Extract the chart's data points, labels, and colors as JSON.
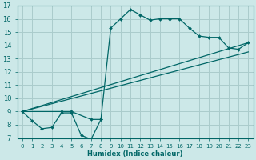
{
  "xlabel": "Humidex (Indice chaleur)",
  "xlim": [
    -0.5,
    23.5
  ],
  "ylim": [
    7,
    17
  ],
  "xticks": [
    0,
    1,
    2,
    3,
    4,
    5,
    6,
    7,
    8,
    9,
    10,
    11,
    12,
    13,
    14,
    15,
    16,
    17,
    18,
    19,
    20,
    21,
    22,
    23
  ],
  "yticks": [
    7,
    8,
    9,
    10,
    11,
    12,
    13,
    14,
    15,
    16,
    17
  ],
  "bg_color": "#cce8e8",
  "grid_color": "#aacccc",
  "line_color": "#006666",
  "series": [
    {
      "x": [
        0,
        1,
        2,
        3,
        4,
        5,
        6,
        7,
        8
      ],
      "y": [
        9,
        8.3,
        7.7,
        7.8,
        8.9,
        8.9,
        7.2,
        6.9,
        8.4
      ],
      "markers": true
    },
    {
      "x": [
        0,
        4,
        5,
        7,
        8,
        9,
        10,
        11,
        12,
        13,
        14,
        15,
        16,
        17,
        18,
        19,
        20,
        21,
        22,
        23
      ],
      "y": [
        9,
        9,
        9,
        8.4,
        8.4,
        15.3,
        16.0,
        16.7,
        16.3,
        15.9,
        16.0,
        16.0,
        16.0,
        15.3,
        14.7,
        14.6,
        14.6,
        13.8,
        13.7,
        14.2
      ],
      "markers": true
    },
    {
      "x": [
        0,
        23
      ],
      "y": [
        9,
        14.2
      ],
      "markers": false
    },
    {
      "x": [
        0,
        23
      ],
      "y": [
        9,
        13.5
      ],
      "markers": false
    }
  ]
}
